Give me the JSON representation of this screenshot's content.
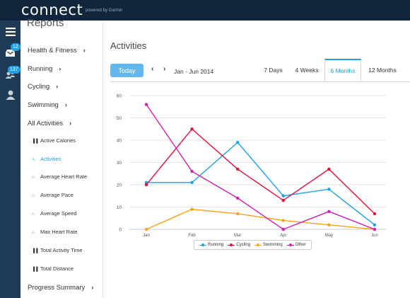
{
  "header": {
    "logo": "connect",
    "powered_by": "powered by Garmin"
  },
  "rail": {
    "inbox_badge": "12",
    "connections_badge": "137"
  },
  "sidebar": {
    "title": "Reports",
    "items": [
      {
        "label": "Health & Fitness"
      },
      {
        "label": "Running"
      },
      {
        "label": "Cycling"
      },
      {
        "label": "Swimming"
      },
      {
        "label": "All Activities"
      }
    ],
    "subitems": [
      {
        "label": "Active Calories",
        "icon": "bar-chart-icon"
      },
      {
        "label": "Activities",
        "icon": "line-chart-icon",
        "active": true
      },
      {
        "label": "Average Heart Rate",
        "icon": "scatter-icon"
      },
      {
        "label": "Average Pace",
        "icon": "scatter-icon"
      },
      {
        "label": "Average Speed",
        "icon": "scatter-icon"
      },
      {
        "label": "Max Heart Rate",
        "icon": "scatter-icon"
      },
      {
        "label": "Total Activity Time",
        "icon": "bar-chart-icon"
      },
      {
        "label": "Total Distance",
        "icon": "bar-chart-icon"
      }
    ],
    "footer_item": {
      "label": "Progress Summary"
    }
  },
  "main": {
    "title": "Activities",
    "today_label": "Today",
    "range_label": "Jan - Jun 2014",
    "tabs": [
      {
        "label": "7 Days"
      },
      {
        "label": "4 Weeks"
      },
      {
        "label": "6 Months",
        "active": true
      },
      {
        "label": "12 Months"
      }
    ]
  },
  "colors": {
    "accent": "#1fa0e6",
    "running": "#1fa0e6",
    "cycling": "#e0103c",
    "swimming": "#f5a31a",
    "other": "#d01fb4"
  },
  "chart_data": {
    "type": "line",
    "x": [
      "Jan",
      "Feb",
      "Mar",
      "Apr",
      "May",
      "Jun"
    ],
    "ylim": [
      0,
      60
    ],
    "yticks": [
      0,
      10,
      20,
      30,
      40,
      50,
      60
    ],
    "grid": true,
    "legend_position": "bottom-center",
    "series": [
      {
        "name": "Running",
        "color": "#1fa0e6",
        "values": [
          21,
          21,
          39,
          15,
          18,
          2
        ]
      },
      {
        "name": "Cycling",
        "color": "#e0103c",
        "values": [
          20,
          45,
          27,
          13,
          27,
          7
        ]
      },
      {
        "name": "Swimming",
        "color": "#f5a31a",
        "values": [
          0,
          9,
          7,
          4,
          2,
          0
        ]
      },
      {
        "name": "Other",
        "color": "#d01fb4",
        "values": [
          56,
          26,
          14,
          0,
          8,
          0
        ]
      }
    ]
  }
}
